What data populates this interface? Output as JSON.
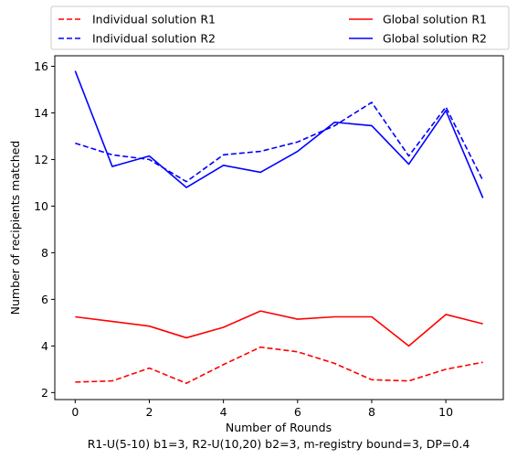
{
  "chart_data": {
    "type": "line",
    "xlabel": "Number of Rounds",
    "subtitle": "R1-U(5-10) b1=3, R2-U(10,20) b2=3, m-registry bound=3, DP=0.4",
    "ylabel": "Number of recipients matched",
    "xlim": [
      -0.55,
      11.55
    ],
    "ylim": [
      1.7,
      16.45
    ],
    "x_ticks": [
      0,
      2,
      4,
      6,
      8,
      10
    ],
    "y_ticks": [
      2,
      4,
      6,
      8,
      10,
      12,
      14,
      16
    ],
    "grid": false,
    "legend_placement": "top, outside plot, two columns",
    "x": [
      0,
      1,
      2,
      3,
      4,
      5,
      6,
      7,
      8,
      9,
      10,
      11
    ],
    "series": [
      {
        "name": "Individual solution R1",
        "color": "#ff0000",
        "dash": true,
        "values": [
          2.45,
          2.5,
          3.05,
          2.4,
          3.2,
          3.95,
          3.75,
          3.25,
          2.55,
          2.5,
          3.0,
          3.3
        ]
      },
      {
        "name": "Individual solution R2",
        "color": "#0000ff",
        "dash": true,
        "values": [
          12.7,
          12.2,
          12.0,
          11.05,
          12.2,
          12.35,
          12.75,
          13.45,
          14.45,
          12.15,
          14.25,
          11.1
        ]
      },
      {
        "name": "Global solution R1",
        "color": "#ff0000",
        "dash": false,
        "values": [
          5.25,
          5.05,
          4.85,
          4.35,
          4.8,
          5.5,
          5.15,
          5.25,
          5.25,
          4.0,
          5.35,
          4.95
        ]
      },
      {
        "name": "Global solution R2",
        "color": "#0000ff",
        "dash": false,
        "values": [
          15.8,
          11.7,
          12.15,
          10.8,
          11.75,
          11.45,
          12.35,
          13.6,
          13.45,
          11.8,
          14.1,
          10.35
        ]
      }
    ]
  }
}
